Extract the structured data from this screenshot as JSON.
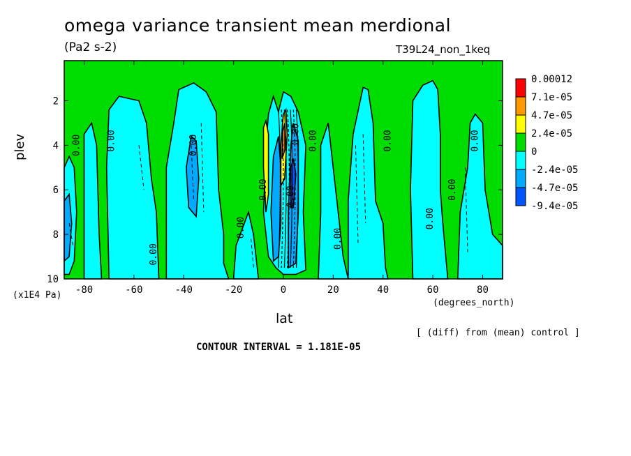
{
  "chart_data": {
    "type": "heatmap",
    "title": "omega variance transient mean merdional",
    "units": "(Pa2 s-2)",
    "run_label": "T39L24_non_1keq",
    "xlabel": "lat",
    "x_units": "(degrees_north)",
    "ylabel": "plev",
    "y_units": "(x1E4 Pa)",
    "xlim": [
      -88,
      88
    ],
    "ylim": [
      10,
      0.2
    ],
    "y_reversed": true,
    "x_ticks": [
      "-80",
      "-60",
      "-40",
      "-20",
      "0",
      "20",
      "40",
      "60",
      "80"
    ],
    "x_tick_values": [
      -80,
      -60,
      -40,
      -20,
      0,
      20,
      40,
      60,
      80
    ],
    "y_ticks": [
      "2",
      "4",
      "6",
      "8",
      "10"
    ],
    "y_tick_values": [
      2,
      4,
      6,
      8,
      10
    ],
    "contour_interval_text": "CONTOUR INTERVAL = 1.181E-05",
    "note": "[ (diff) from (mean) control ]",
    "colorbar": {
      "levels": [
        "0.00012",
        "7.1e-05",
        "4.7e-05",
        "2.4e-05",
        "0",
        "-2.4e-05",
        "-4.7e-05",
        "-9.4e-05"
      ],
      "colors": [
        "#ff0000",
        "#ff9900",
        "#ffff00",
        "#00dd00",
        "#00ffff",
        "#00aaff",
        "#0055ff"
      ]
    },
    "contour_labels": [
      "0.00",
      "0.00",
      "0.00",
      "0.00",
      "0.00",
      "0.00",
      "0.00",
      "0.00",
      "0.00",
      "0.00",
      "0.00",
      "0.00",
      "0.00",
      "0.00"
    ],
    "regions": [
      {
        "fill": "#00ffff",
        "pts": [
          [
            -88,
            5
          ],
          [
            -86,
            4.5
          ],
          [
            -84,
            5
          ],
          [
            -83,
            7
          ],
          [
            -84,
            9.2
          ],
          [
            -86,
            9.8
          ],
          [
            -88,
            9.8
          ]
        ]
      },
      {
        "fill": "#00ffff",
        "pts": [
          [
            -80,
            10
          ],
          [
            -80,
            3.5
          ],
          [
            -77,
            3.0
          ],
          [
            -75,
            4
          ],
          [
            -74,
            8
          ],
          [
            -73,
            10
          ]
        ]
      },
      {
        "fill": "#00ffff",
        "pts": [
          [
            -70,
            10
          ],
          [
            -71,
            5
          ],
          [
            -70,
            2.4
          ],
          [
            -66,
            1.8
          ],
          [
            -58,
            2.0
          ],
          [
            -55,
            3.0
          ],
          [
            -53,
            5.5
          ],
          [
            -51,
            7
          ],
          [
            -50,
            10
          ]
        ]
      },
      {
        "fill": "#00ffff",
        "pts": [
          [
            -47,
            10
          ],
          [
            -47,
            5
          ],
          [
            -44,
            3
          ],
          [
            -42,
            1.5
          ],
          [
            -36,
            1.2
          ],
          [
            -31,
            1.6
          ],
          [
            -27,
            2.5
          ],
          [
            -26,
            6
          ],
          [
            -24,
            8
          ],
          [
            -24,
            9.3
          ],
          [
            -22,
            10
          ]
        ]
      },
      {
        "fill": "#00ffff",
        "pts": [
          [
            -20,
            10
          ],
          [
            -19,
            8.5
          ],
          [
            -14,
            7
          ],
          [
            -12,
            8
          ],
          [
            -10,
            10
          ]
        ]
      },
      {
        "fill": "#00ffff",
        "pts": [
          [
            -6,
            9
          ],
          [
            -8,
            7
          ],
          [
            -7,
            4
          ],
          [
            -6,
            2.6
          ],
          [
            -4,
            1.8
          ],
          [
            -2,
            2.5
          ],
          [
            0,
            1.6
          ],
          [
            3,
            1.8
          ],
          [
            6,
            2.5
          ],
          [
            9,
            4
          ],
          [
            8,
            7
          ],
          [
            9,
            9.6
          ],
          [
            5,
            9.8
          ],
          [
            0,
            9.8
          ],
          [
            -3,
            9.5
          ]
        ]
      },
      {
        "fill": "#00ffff",
        "pts": [
          [
            14,
            10
          ],
          [
            15,
            7
          ],
          [
            15,
            4
          ],
          [
            18,
            3
          ],
          [
            21,
            6
          ],
          [
            24,
            9
          ],
          [
            26,
            10
          ]
        ]
      },
      {
        "fill": "#00ffff",
        "pts": [
          [
            26,
            10
          ],
          [
            26,
            6.5
          ],
          [
            28,
            3.5
          ],
          [
            32,
            1.4
          ],
          [
            34,
            1.5
          ],
          [
            36,
            3
          ],
          [
            37,
            6.5
          ],
          [
            40,
            7.5
          ],
          [
            41,
            9.5
          ],
          [
            42,
            10
          ]
        ]
      },
      {
        "fill": "#00ffff",
        "pts": [
          [
            52,
            10
          ],
          [
            51,
            6
          ],
          [
            52,
            2.0
          ],
          [
            56,
            1.3
          ],
          [
            60,
            1.1
          ],
          [
            62,
            1.5
          ],
          [
            63,
            3.5
          ],
          [
            63,
            6
          ],
          [
            64,
            7.5
          ],
          [
            66,
            10
          ]
        ]
      },
      {
        "fill": "#00ffff",
        "pts": [
          [
            70,
            10
          ],
          [
            71,
            7
          ],
          [
            74,
            5
          ],
          [
            75,
            3.0
          ],
          [
            77,
            2.6
          ],
          [
            80,
            3.0
          ],
          [
            81,
            6
          ],
          [
            84,
            8
          ],
          [
            88,
            8.5
          ],
          [
            88,
            10
          ]
        ]
      },
      {
        "fill": "#00aaff",
        "pts": [
          [
            -88,
            6.5
          ],
          [
            -86,
            6.2
          ],
          [
            -85,
            7.5
          ],
          [
            -86,
            9
          ],
          [
            -88,
            9.2
          ]
        ]
      },
      {
        "fill": "#00aaff",
        "pts": [
          [
            -38,
            6.8
          ],
          [
            -39,
            5
          ],
          [
            -37,
            3.6
          ],
          [
            -35,
            3.8
          ],
          [
            -34,
            5.5
          ],
          [
            -35,
            7.2
          ]
        ]
      },
      {
        "fill": "#00aaff",
        "pts": [
          [
            -4,
            9.2
          ],
          [
            -5,
            7
          ],
          [
            -4,
            4.5
          ],
          [
            -2,
            3.6
          ],
          [
            -1,
            5
          ],
          [
            -1,
            7.5
          ],
          [
            -2,
            9
          ]
        ]
      },
      {
        "fill": "#00aaff",
        "pts": [
          [
            2,
            9.5
          ],
          [
            2,
            7
          ],
          [
            3,
            4
          ],
          [
            4,
            3.0
          ],
          [
            6,
            3.8
          ],
          [
            6,
            7
          ],
          [
            5,
            9.3
          ]
        ]
      },
      {
        "fill": "#0055ff",
        "pts": [
          [
            3,
            6.8
          ],
          [
            3,
            5
          ],
          [
            4,
            4.6
          ],
          [
            5,
            5.3
          ],
          [
            4,
            6.8
          ]
        ]
      },
      {
        "fill": "#ffff00",
        "pts": [
          [
            -7,
            7
          ],
          [
            -8,
            5
          ],
          [
            -8,
            3.2
          ],
          [
            -7,
            2.9
          ],
          [
            -6,
            3.5
          ],
          [
            -6,
            6.2
          ]
        ]
      },
      {
        "fill": "#ffff00",
        "pts": [
          [
            -1,
            5.8
          ],
          [
            -1,
            4
          ],
          [
            0,
            2.6
          ],
          [
            1,
            2.4
          ],
          [
            1.5,
            3.5
          ],
          [
            0.5,
            5.5
          ]
        ]
      },
      {
        "fill": "#ff9900",
        "pts": [
          [
            -0.5,
            4.6
          ],
          [
            -0.3,
            3.4
          ],
          [
            0.6,
            3.0
          ],
          [
            0.6,
            4.2
          ]
        ]
      }
    ],
    "label_positions_units": [
      [
        -82,
        4.0
      ],
      [
        -68,
        3.8
      ],
      [
        -35,
        4.0
      ],
      [
        -51,
        8.9
      ],
      [
        -16,
        7.7
      ],
      [
        -7,
        6.0
      ],
      [
        6,
        3.5
      ],
      [
        4,
        6.3
      ],
      [
        13,
        3.8
      ],
      [
        23,
        8.2
      ],
      [
        43,
        3.8
      ],
      [
        60,
        7.3
      ],
      [
        69,
        6.0
      ],
      [
        78,
        3.8
      ]
    ]
  }
}
